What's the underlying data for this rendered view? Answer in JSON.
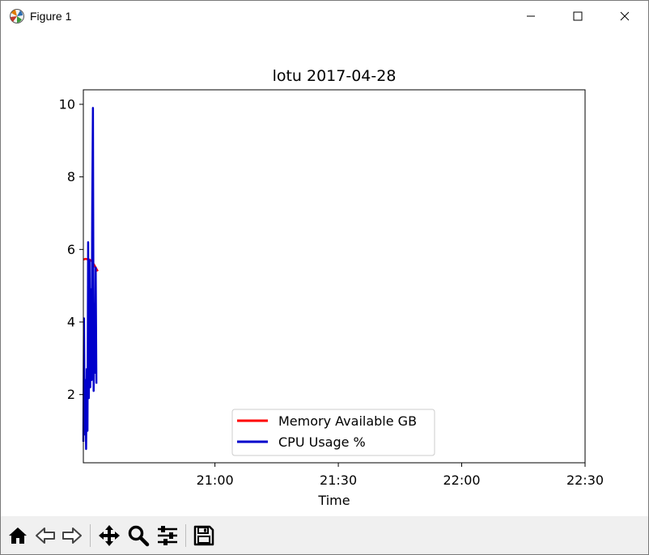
{
  "window": {
    "title": "Figure 1",
    "icons": {
      "app": "matplotlib-figure-icon",
      "minimize": "minimize-icon",
      "maximize": "maximize-icon",
      "close": "close-icon"
    }
  },
  "toolbar": {
    "buttons": [
      "home-icon",
      "back-arrow-icon",
      "forward-arrow-icon",
      "pan-icon",
      "zoom-icon",
      "configure-subplots-icon",
      "save-icon"
    ]
  },
  "chart_data": {
    "type": "line",
    "title": "lotu 2017-04-28",
    "xlabel": "Time",
    "ylabel": "",
    "x_axis_type": "time",
    "xlim": [
      "20:28",
      "22:30"
    ],
    "xticks": [
      "21:00",
      "21:30",
      "22:00",
      "22:30"
    ],
    "ylim": [
      0.12,
      10.4
    ],
    "yticks": [
      2,
      4,
      6,
      8,
      10
    ],
    "grid": false,
    "legend_position": "lower center",
    "series": [
      {
        "name": "Memory Available GB",
        "color": "#ff0000",
        "x": [
          "20:28:00",
          "20:28:30",
          "20:29:00",
          "20:29:30",
          "20:30:00",
          "20:30:30",
          "20:31:00",
          "20:31:30"
        ],
        "y": [
          5.72,
          5.74,
          5.73,
          5.72,
          5.68,
          5.6,
          5.5,
          5.4
        ]
      },
      {
        "name": "CPU Usage %",
        "color": "#0000cc",
        "x": [
          "20:28:00",
          "20:28:10",
          "20:28:20",
          "20:28:30",
          "20:28:40",
          "20:28:50",
          "20:29:00",
          "20:29:10",
          "20:29:20",
          "20:29:30",
          "20:29:40",
          "20:29:50",
          "20:30:00",
          "20:30:10",
          "20:30:20",
          "20:30:30",
          "20:30:40",
          "20:30:50",
          "20:31:00",
          "20:31:10"
        ],
        "y": [
          0.7,
          4.1,
          0.9,
          2.4,
          0.5,
          2.7,
          1.0,
          6.2,
          1.9,
          5.7,
          2.2,
          4.9,
          2.4,
          7.2,
          9.9,
          2.1,
          4.5,
          2.6,
          5.5,
          2.3
        ]
      }
    ]
  }
}
